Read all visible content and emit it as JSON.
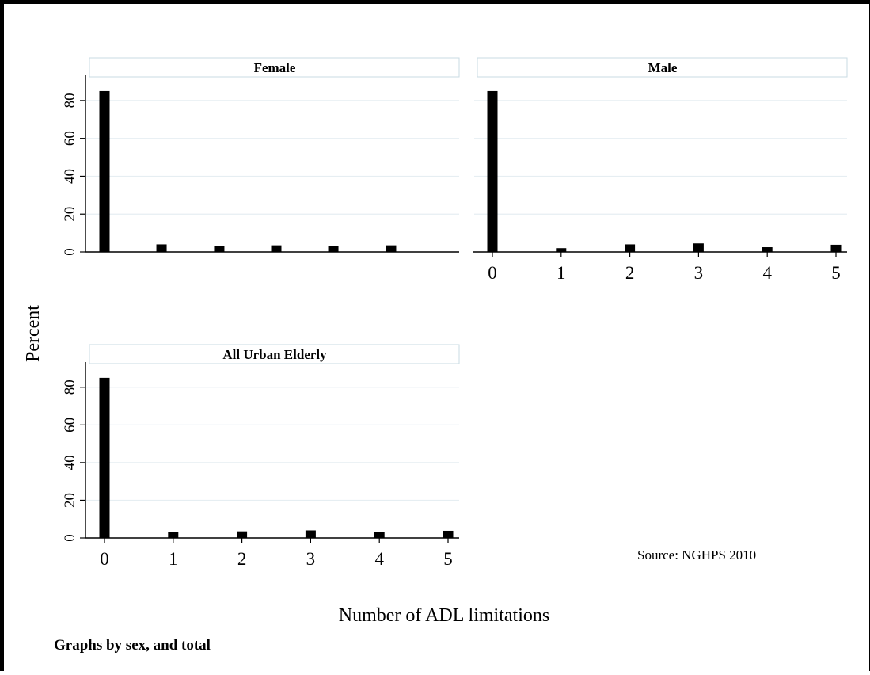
{
  "chart_data": {
    "type": "bar",
    "ylabel": "Percent",
    "xlabel": "Number of ADL limitations",
    "note": "Graphs by sex, and total",
    "source": "Source: NGHPS 2010",
    "x_ticks": [
      0,
      1,
      2,
      3,
      4,
      5
    ],
    "y_ticks": [
      0,
      20,
      40,
      60,
      80
    ],
    "ylim": [
      0,
      90
    ],
    "xlim": [
      -0.2,
      5.2
    ],
    "grid": true,
    "panels": [
      {
        "title": "Female",
        "x": [
          0,
          0.83,
          1.67,
          2.5,
          3.33,
          4.17
        ],
        "values": [
          85,
          4,
          3,
          3.5,
          3.3,
          3.5
        ]
      },
      {
        "title": "Male",
        "x": [
          0,
          1,
          2,
          3,
          4,
          5
        ],
        "values": [
          85,
          2,
          4,
          4.5,
          2.5,
          3.8
        ]
      },
      {
        "title": "All Urban Elderly",
        "x": [
          0,
          1,
          2,
          3,
          4,
          5
        ],
        "values": [
          85,
          3,
          3.5,
          4,
          3,
          3.8
        ]
      }
    ]
  }
}
